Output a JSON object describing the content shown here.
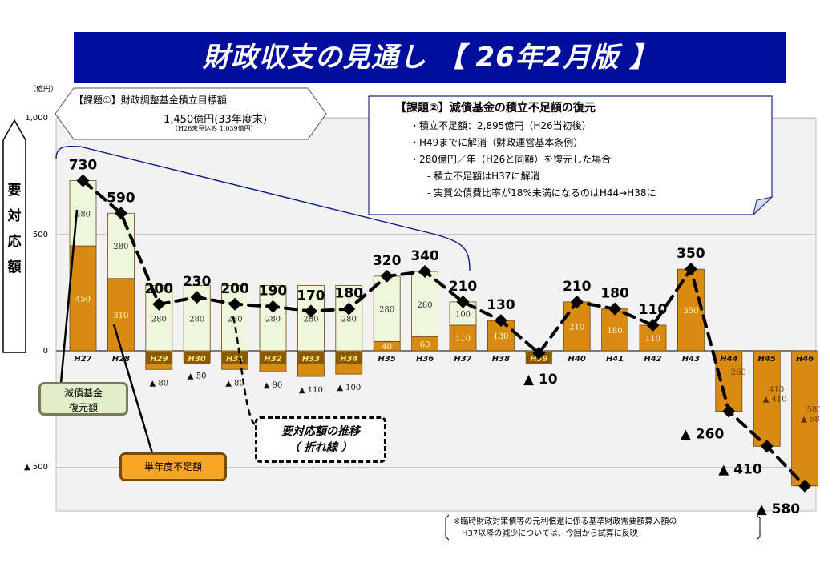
{
  "title": "財政収支の見通し 【 26年2月版 】",
  "y_unit_label": "（億円）",
  "y_ticks": [
    {
      "label": "1,000",
      "value": 1000
    },
    {
      "label": "500",
      "value": 500
    },
    {
      "label": "0",
      "value": 0
    },
    {
      "label": "▲ 500",
      "value": -500
    }
  ],
  "vertical_label": [
    "要",
    "対",
    "応",
    "額"
  ],
  "callout_task1": {
    "line1": "【課題①】財政調整基金積立目標額",
    "line2": "1,450億円(33年度末)",
    "line3": "（H26末見込み 1,039億円）"
  },
  "callout_task2": {
    "title": "【課題②】減債基金の積立不足額の復元",
    "lines": [
      "・積立不足額：2,895億円（H26当初後）",
      "・H49までに解消（財政運営基本条例）",
      "・280億円／年（H26と同額）を復元した場合",
      "- 積立不足額はH37に解消",
      "- 実質公債費比率が18%未満になるのはH44→H38に"
    ]
  },
  "legend": {
    "fund_restore": "減債基金\n復元額",
    "annual_deficit": "単年度不足額",
    "trend": "要対応額の推移\n（ 折れ線 ）"
  },
  "note": [
    "※臨時財政対策債等の元利償還に係る基準財政需要額算入額の",
    "H37以降の減少については、今回から試算に反映"
  ],
  "colors": {
    "title_bg": "#000e9c",
    "deficit_fill": "#d98a10",
    "fund_fill": "#eef6dc",
    "fund_legend_bg": "#e3efcc",
    "deficit_legend_bg": "#f5a623",
    "plot_bg": "#f2f2f2",
    "dark_bar_label_bg": "#8a5a00"
  },
  "chart_data": {
    "type": "bar",
    "categories": [
      "H27",
      "H28",
      "H29",
      "H30",
      "H31",
      "H32",
      "H33",
      "H34",
      "H35",
      "H36",
      "H37",
      "H38",
      "H39",
      "H40",
      "H41",
      "H42",
      "H43",
      "H44",
      "H45",
      "H46"
    ],
    "ylim": [
      -680,
      1000
    ],
    "grid": true,
    "series": [
      {
        "name": "単年度不足額",
        "values": [
          450,
          310,
          -80,
          -50,
          -80,
          -90,
          -110,
          -100,
          40,
          60,
          110,
          130,
          -10,
          210,
          180,
          110,
          350,
          -260,
          -410,
          -580
        ]
      },
      {
        "name": "減債基金復元額",
        "values": [
          280,
          280,
          280,
          280,
          280,
          280,
          280,
          280,
          280,
          280,
          100,
          0,
          0,
          0,
          0,
          0,
          0,
          0,
          0,
          0
        ]
      },
      {
        "name": "要対応額の推移",
        "values": [
          730,
          590,
          200,
          230,
          200,
          190,
          170,
          180,
          320,
          340,
          210,
          130,
          -10,
          210,
          180,
          110,
          350,
          -260,
          -410,
          -580
        ]
      }
    ],
    "deficit_bar_labels": [
      "450",
      "310",
      "",
      "",
      "",
      "",
      "",
      "",
      "40",
      "60",
      "110",
      "130",
      "",
      "210",
      "180",
      "110",
      "350",
      "260",
      "410",
      "580"
    ],
    "fund_bar_labels": [
      "280",
      "280",
      "280",
      "280",
      "280",
      "280",
      "280",
      "280",
      "280",
      "280",
      "100",
      "",
      "",
      "",
      "",
      "",
      "",
      "",
      "",
      ""
    ],
    "total_labels": [
      "730",
      "590",
      "200",
      "230",
      "200",
      "190",
      "170",
      "180",
      "320",
      "340",
      "210",
      "130",
      "▲ 10",
      "210",
      "180",
      "110",
      "350",
      "▲ 260",
      "▲ 410",
      "▲ 580"
    ],
    "small_negative_labels": [
      "",
      "",
      "▲ 80",
      "▲ 50",
      "▲ 80",
      "▲ 90",
      "▲ 110",
      "▲ 100",
      "",
      "",
      "",
      "",
      "",
      "",
      "",
      "",
      "",
      "",
      "",
      ""
    ],
    "inner_negative_labels": [
      "",
      "",
      "",
      "",
      "",
      "",
      "",
      "",
      "",
      "",
      "",
      "",
      "",
      "",
      "",
      "",
      "",
      "",
      "▲ 410",
      "▲ 580"
    ]
  }
}
